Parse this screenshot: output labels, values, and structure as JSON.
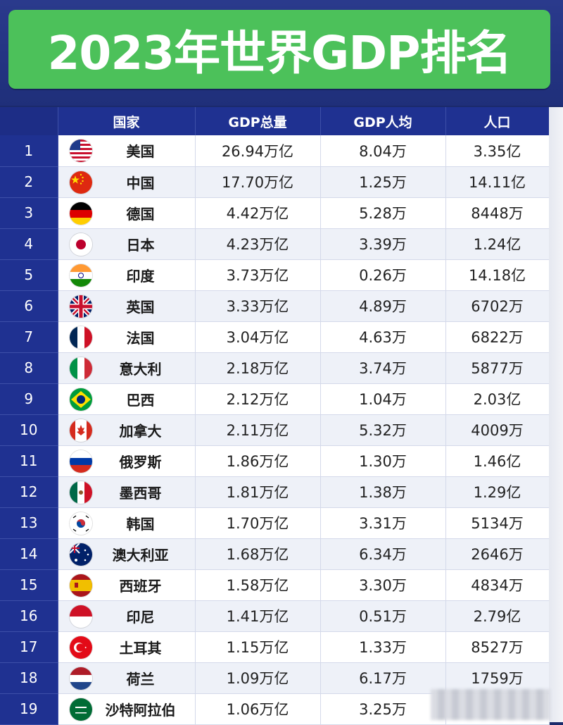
{
  "title": "2023年世界GDP排名",
  "header": {
    "rank": "",
    "country": "国家",
    "gdp_total": "GDP总量",
    "gdp_per_capita": "GDP人均",
    "population": "人口"
  },
  "rows": [
    {
      "rank": "1",
      "country": "美国",
      "flag": "us-flag-icon",
      "gdp": "26.94万亿",
      "per": "8.04万",
      "pop": "3.35亿"
    },
    {
      "rank": "2",
      "country": "中国",
      "flag": "cn-flag-icon",
      "gdp": "17.70万亿",
      "per": "1.25万",
      "pop": "14.11亿"
    },
    {
      "rank": "3",
      "country": "德国",
      "flag": "de-flag-icon",
      "gdp": "4.42万亿",
      "per": "5.28万",
      "pop": "8448万"
    },
    {
      "rank": "4",
      "country": "日本",
      "flag": "jp-flag-icon",
      "gdp": "4.23万亿",
      "per": "3.39万",
      "pop": "1.24亿"
    },
    {
      "rank": "5",
      "country": "印度",
      "flag": "in-flag-icon",
      "gdp": "3.73万亿",
      "per": "0.26万",
      "pop": "14.18亿"
    },
    {
      "rank": "6",
      "country": "英国",
      "flag": "gb-flag-icon",
      "gdp": "3.33万亿",
      "per": "4.89万",
      "pop": "6702万"
    },
    {
      "rank": "7",
      "country": "法国",
      "flag": "fr-flag-icon",
      "gdp": "3.04万亿",
      "per": "4.63万",
      "pop": "6822万"
    },
    {
      "rank": "8",
      "country": "意大利",
      "flag": "it-flag-icon",
      "gdp": "2.18万亿",
      "per": "3.74万",
      "pop": "5877万"
    },
    {
      "rank": "9",
      "country": "巴西",
      "flag": "br-flag-icon",
      "gdp": "2.12万亿",
      "per": "1.04万",
      "pop": "2.03亿"
    },
    {
      "rank": "10",
      "country": "加拿大",
      "flag": "ca-flag-icon",
      "gdp": "2.11万亿",
      "per": "5.32万",
      "pop": "4009万"
    },
    {
      "rank": "11",
      "country": "俄罗斯",
      "flag": "ru-flag-icon",
      "gdp": "1.86万亿",
      "per": "1.30万",
      "pop": "1.46亿"
    },
    {
      "rank": "12",
      "country": "墨西哥",
      "flag": "mx-flag-icon",
      "gdp": "1.81万亿",
      "per": "1.38万",
      "pop": "1.29亿"
    },
    {
      "rank": "13",
      "country": "韩国",
      "flag": "kr-flag-icon",
      "gdp": "1.70万亿",
      "per": "3.31万",
      "pop": "5134万"
    },
    {
      "rank": "14",
      "country": "澳大利亚",
      "flag": "au-flag-icon",
      "gdp": "1.68万亿",
      "per": "6.34万",
      "pop": "2646万"
    },
    {
      "rank": "15",
      "country": "西班牙",
      "flag": "es-flag-icon",
      "gdp": "1.58万亿",
      "per": "3.30万",
      "pop": "4834万"
    },
    {
      "rank": "16",
      "country": "印尼",
      "flag": "id-flag-icon",
      "gdp": "1.41万亿",
      "per": "0.51万",
      "pop": "2.79亿"
    },
    {
      "rank": "17",
      "country": "土耳其",
      "flag": "tr-flag-icon",
      "gdp": "1.15万亿",
      "per": "1.33万",
      "pop": "8527万"
    },
    {
      "rank": "18",
      "country": "荷兰",
      "flag": "nl-flag-icon",
      "gdp": "1.09万亿",
      "per": "6.17万",
      "pop": "1759万"
    },
    {
      "rank": "19",
      "country": "沙特阿拉伯",
      "flag": "sa-flag-icon",
      "gdp": "1.06万亿",
      "per": "3.25万",
      "pop": ""
    }
  ],
  "colors": {
    "title_bg": "#4cc15a",
    "header_bg": "#1f3191",
    "page_bg": "#1b2a6b"
  }
}
